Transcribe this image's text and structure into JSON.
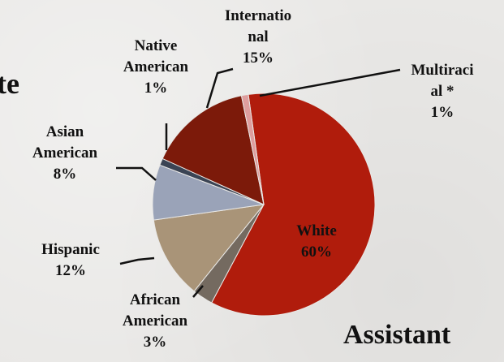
{
  "fragments": {
    "left": "te",
    "right": "Assistant"
  },
  "chart_data": {
    "type": "pie",
    "slices": [
      {
        "label": "White",
        "percent_label": "60%",
        "value": 60,
        "color": "#b01c0c"
      },
      {
        "label": "African American",
        "percent_label": "3%",
        "value": 3,
        "color": "#746a60"
      },
      {
        "label": "Hispanic",
        "percent_label": "12%",
        "value": 12,
        "color": "#a99478"
      },
      {
        "label": "Asian American",
        "percent_label": "8%",
        "value": 8,
        "color": "#9aa3b8"
      },
      {
        "label": "Native American",
        "percent_label": "1%",
        "value": 1,
        "color": "#3b4454"
      },
      {
        "label": "International",
        "percent_label": "15%",
        "value": 15,
        "color": "#7c1a0a"
      },
      {
        "label": "Multiracial *",
        "percent_label": "1%",
        "value": 1,
        "color": "#de9e9e"
      }
    ],
    "data_labels": [
      {
        "lines": [
          "White",
          "60%"
        ]
      },
      {
        "lines": [
          "African",
          "American",
          "3%"
        ]
      },
      {
        "lines": [
          "Hispanic",
          "12%"
        ]
      },
      {
        "lines": [
          "Asian",
          "American",
          "8%"
        ]
      },
      {
        "lines": [
          "Native",
          "American",
          "1%"
        ]
      },
      {
        "lines": [
          "Internatio",
          "nal",
          "15%"
        ]
      },
      {
        "lines": [
          "Multiraci",
          "al *",
          "1%"
        ]
      }
    ],
    "legend": "none"
  }
}
